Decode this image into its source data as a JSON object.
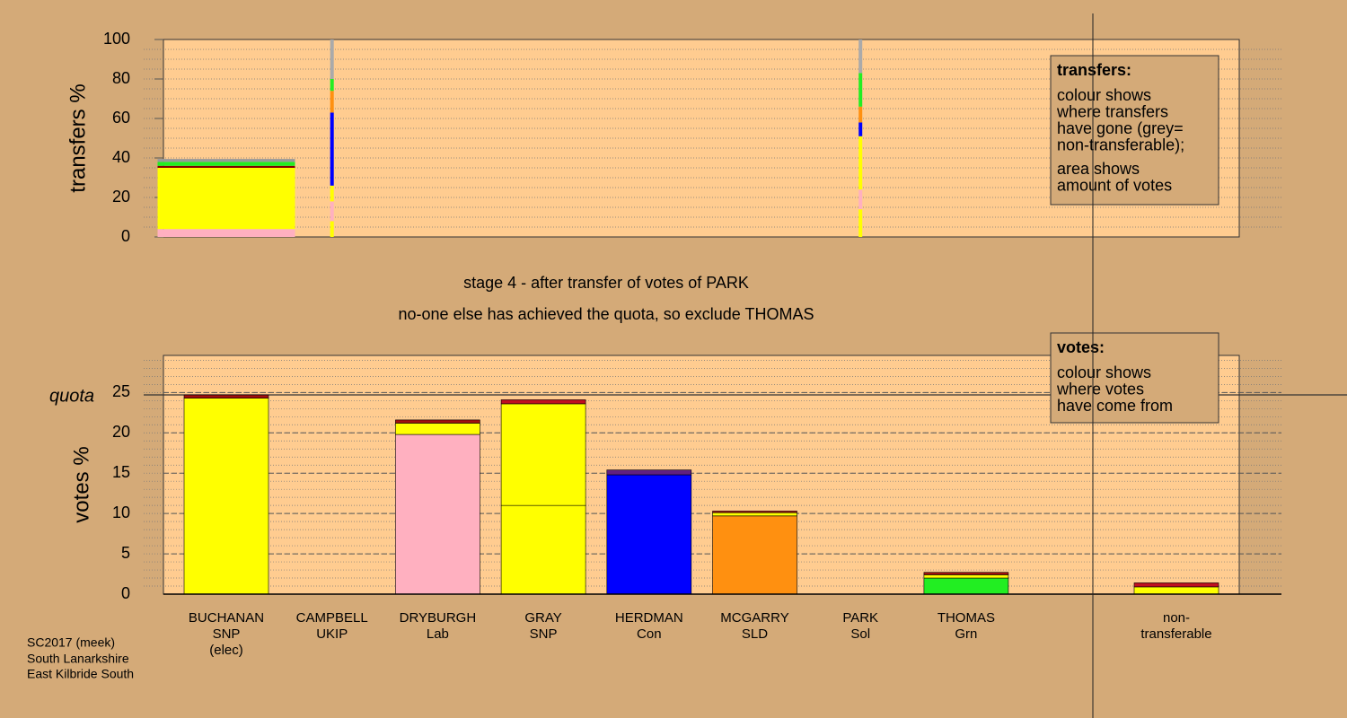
{
  "chart_data": [
    {
      "type": "stacked-transfer",
      "ylabel": "transfers %",
      "ylim": [
        0,
        100
      ],
      "yticks": [
        0,
        20,
        40,
        60,
        80,
        100
      ],
      "minor_grid": 5,
      "legend_title": "transfers:",
      "legend_lines": [
        "colour shows",
        "where transfers",
        "have gone (grey=",
        "non-transferable);",
        "area shows",
        "amount of votes"
      ],
      "stacks": [
        {
          "values": [
            4,
            31,
            1,
            2,
            1.5
          ],
          "colors": [
            "#ffb0c0",
            "#ffff00",
            "#800000",
            "#22ee22",
            "#999999"
          ]
        },
        {
          "values": [
            8,
            10,
            8,
            37,
            11,
            6,
            20
          ],
          "colors": [
            "#ffff00",
            "#ffb0c0",
            "#ffff00",
            "#0000ff",
            "#ff9010",
            "#22ee22",
            "#aaaaaa"
          ]
        },
        null,
        null,
        null,
        null,
        {
          "values": [
            14,
            10,
            27,
            7,
            8,
            17,
            17
          ],
          "colors": [
            "#ffff00",
            "#ffb0c0",
            "#ffff00",
            "#0000ff",
            "#ff9010",
            "#22ee22",
            "#aaaaaa"
          ]
        },
        null,
        null
      ]
    },
    {
      "type": "stacked-bar",
      "ylabel": "votes %",
      "ylim": [
        0,
        29.6
      ],
      "yticks": [
        0,
        5,
        10,
        15,
        20,
        25
      ],
      "minor_grid": 1,
      "quota_label": "quota",
      "quota": 24.7,
      "legend_title": "votes:",
      "legend_lines": [
        "colour shows",
        "where votes",
        "have come from"
      ],
      "categories": [
        [
          "BUCHANAN",
          "SNP",
          "(elec)"
        ],
        [
          "CAMPBELL",
          "UKIP"
        ],
        [
          "DRYBURGH",
          "Lab"
        ],
        [
          "GRAY",
          "SNP"
        ],
        [
          "HERDMAN",
          "Con"
        ],
        [
          "MCGARRY",
          "SLD"
        ],
        [
          "PARK",
          "Sol"
        ],
        [
          "THOMAS",
          "Grn"
        ],
        [
          "non-",
          "transferable"
        ]
      ],
      "stacks": [
        {
          "values": [
            24.3,
            0.4
          ],
          "colors": [
            "#ffff00",
            "#a01010"
          ]
        },
        {
          "values": [
            0
          ],
          "colors": [
            "#ffff00"
          ]
        },
        {
          "values": [
            19.8,
            1.4,
            0.4
          ],
          "colors": [
            "#ffb0c0",
            "#ffff00",
            "#a01010"
          ]
        },
        {
          "values": [
            11,
            12.6,
            0.5
          ],
          "colors": [
            "#ffff00",
            "#ffff00",
            "#c01020"
          ]
        },
        {
          "values": [
            14.8,
            0.6
          ],
          "colors": [
            "#0000ff",
            "#602080"
          ]
        },
        {
          "values": [
            9.7,
            0.4,
            0.2
          ],
          "colors": [
            "#ff9010",
            "#ffff00",
            "#a01010"
          ]
        },
        {
          "values": [
            0
          ],
          "colors": [
            "#ffff00"
          ]
        },
        {
          "values": [
            2.0,
            0.4,
            0.3
          ],
          "colors": [
            "#22ee22",
            "#ffff00",
            "#a01010"
          ]
        },
        {
          "values": [
            0.9,
            0.5
          ],
          "colors": [
            "#ffff00",
            "#c01020"
          ]
        }
      ]
    }
  ],
  "stage_title": "stage 4 - after transfer of votes of PARK",
  "stage_note": "no-one else has achieved the quota, so exclude THOMAS",
  "footer": [
    "SC2017 (meek)",
    "South Lanarkshire",
    "East Kilbride South"
  ]
}
